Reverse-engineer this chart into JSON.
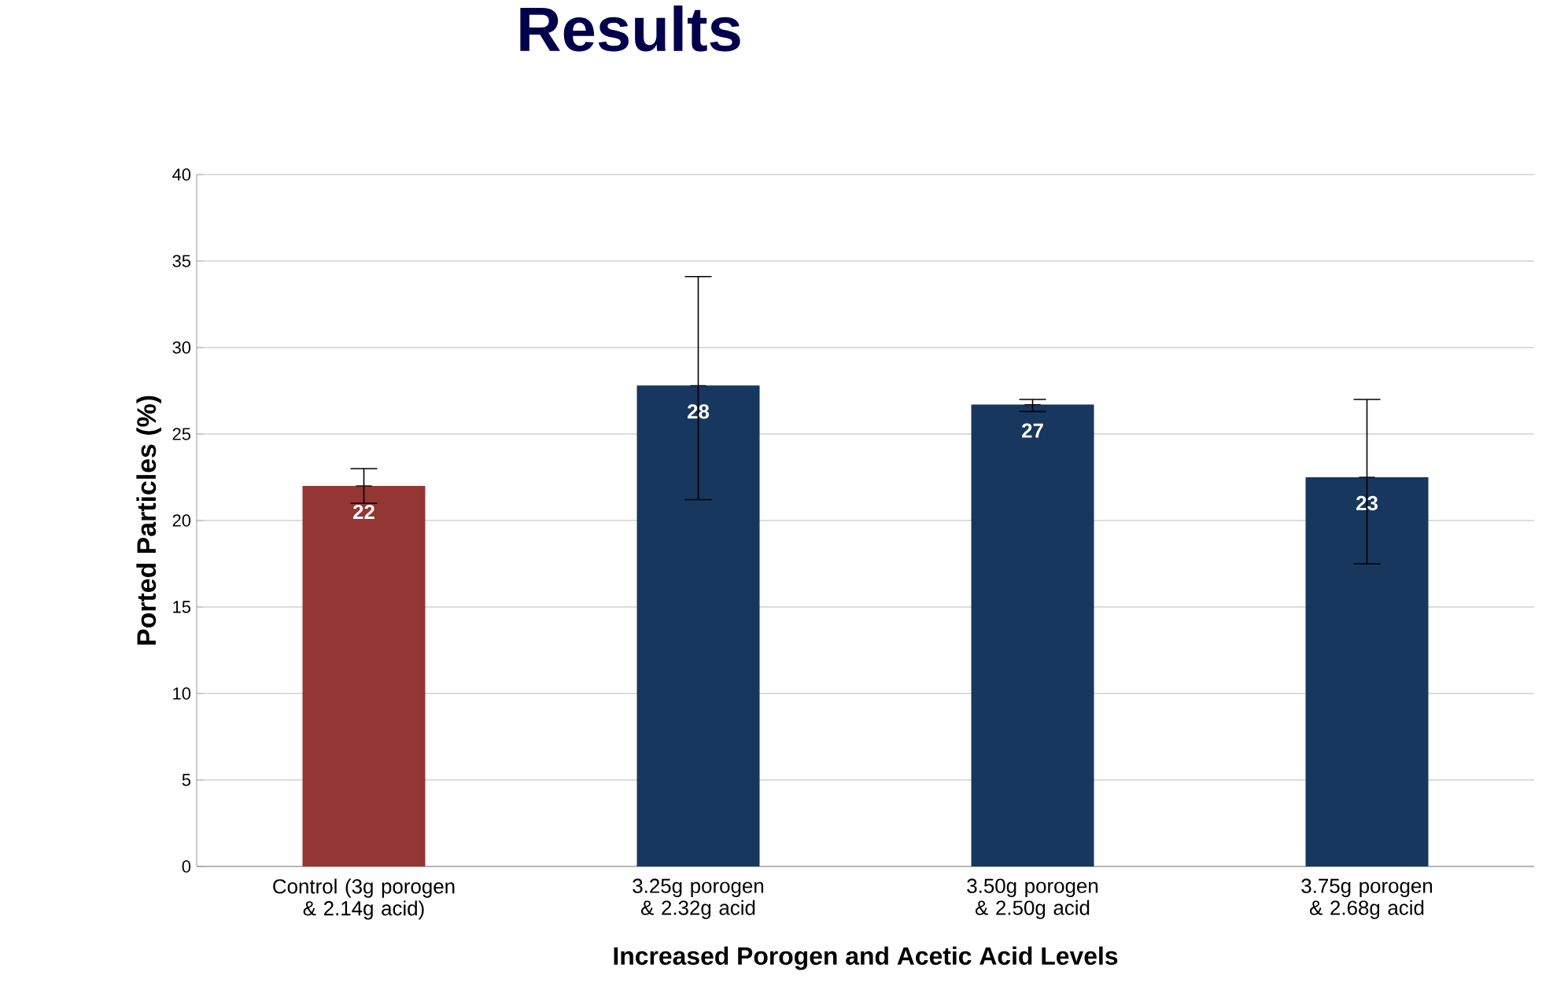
{
  "chart_data": {
    "type": "bar",
    "title": "Results",
    "xlabel": "Increased Porogen and Acetic Acid Levels",
    "ylabel": "Ported Particles (%)",
    "categories": [
      "Control (3g porogen & 2.14g acid)",
      "3.25g porogen & 2.32g acid",
      "3.50g porogen & 2.50g acid",
      "3.75g porogen & 2.68g acid"
    ],
    "values": [
      22.0,
      27.8,
      26.7,
      22.5
    ],
    "colors": [
      "#943634",
      "#17375e",
      "#17375e",
      "#17375e"
    ],
    "errors": [
      [
        21.0,
        23.0
      ],
      [
        21.2,
        34.1
      ],
      [
        26.3,
        27.0
      ],
      [
        17.5,
        27.0
      ]
    ],
    "value_labels": [
      "22",
      "28",
      "27",
      "23"
    ],
    "ylim": [
      0,
      40
    ],
    "yticks": [
      0,
      5,
      10,
      15,
      20,
      25,
      30,
      35,
      40
    ],
    "grid": "y"
  }
}
